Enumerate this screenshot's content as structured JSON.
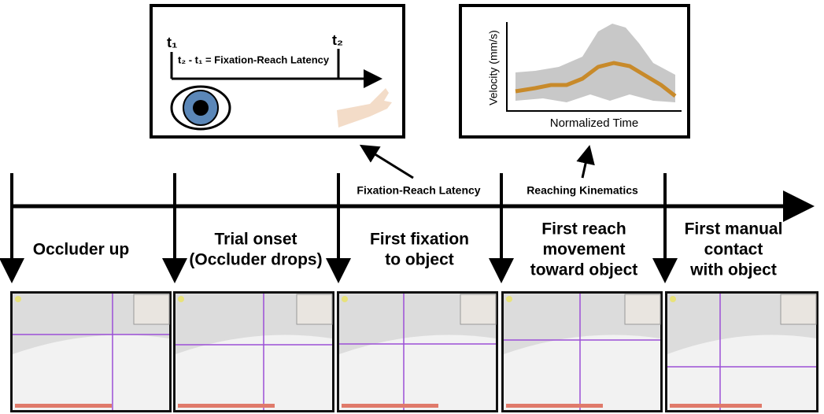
{
  "latency_panel": {
    "t1": "t₁",
    "t2": "t₂",
    "equation": "t₂ - t₁ = Fixation-Reach Latency"
  },
  "kinematics_panel": {
    "y_label": "Velocity (mm/s)",
    "x_label": "Normalized Time"
  },
  "timeline": {
    "labels": [
      "Fixation-Reach Latency",
      "Reaching Kinematics"
    ]
  },
  "events": [
    {
      "lines": [
        "Occluder up"
      ]
    },
    {
      "lines": [
        "Trial onset",
        "(Occluder drops)"
      ]
    },
    {
      "lines": [
        "First fixation",
        "to object"
      ]
    },
    {
      "lines": [
        "First reach",
        "movement",
        "toward object"
      ]
    },
    {
      "lines": [
        "First manual",
        "contact",
        "with object"
      ]
    }
  ]
}
